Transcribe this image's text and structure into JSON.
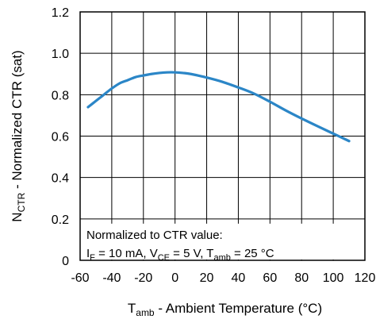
{
  "chart_data": {
    "type": "line",
    "xlabel": {
      "main": "T",
      "sub": "amb",
      "rest": " - Ambient Temperature (°C)"
    },
    "ylabel": {
      "main": "N",
      "sub": "CTR",
      "rest": " - Normalized CTR (sat)"
    },
    "xlim": [
      -60,
      120
    ],
    "ylim": [
      0,
      1.2
    ],
    "xticks": [
      "-60",
      "-40",
      "-20",
      "0",
      "20",
      "40",
      "60",
      "80",
      "100",
      "120"
    ],
    "yticks": [
      "0",
      "0.2",
      "0.4",
      "0.6",
      "0.8",
      "1.0",
      "1.2"
    ],
    "xtick_values": [
      -60,
      -40,
      -20,
      0,
      20,
      40,
      60,
      80,
      100,
      120
    ],
    "ytick_values": [
      0,
      0.2,
      0.4,
      0.6,
      0.8,
      1.0,
      1.2
    ],
    "grid": true,
    "series": [
      {
        "color": "#2b86c7",
        "x": [
          -55,
          -50,
          -45,
          -40,
          -35,
          -30,
          -25,
          -20,
          -15,
          -10,
          -5,
          0,
          5,
          10,
          20,
          30,
          40,
          50,
          60,
          70,
          80,
          90,
          100,
          110
        ],
        "values": [
          0.74,
          0.77,
          0.8,
          0.83,
          0.855,
          0.87,
          0.885,
          0.893,
          0.9,
          0.905,
          0.908,
          0.908,
          0.905,
          0.9,
          0.883,
          0.862,
          0.835,
          0.805,
          0.766,
          0.724,
          0.685,
          0.648,
          0.612,
          0.576
        ]
      }
    ],
    "annotation": {
      "line1": "Normalized to CTR value:",
      "line2_parts": [
        {
          "t": "I"
        },
        {
          "t": "F",
          "sub": true
        },
        {
          "t": " = 10 mA, V"
        },
        {
          "t": "CE",
          "sub": true
        },
        {
          "t": " = 5 V, T"
        },
        {
          "t": "amb",
          "sub": true
        },
        {
          "t": " = 25 °C"
        }
      ]
    }
  }
}
